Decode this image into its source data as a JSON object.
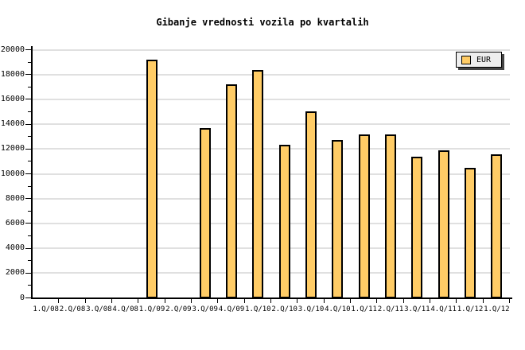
{
  "title": "Gibanje vrednosti vozila po kvartalih",
  "legend": {
    "label": "EUR"
  },
  "colors": {
    "background": "#FFFFFF",
    "bar_fill": "#FFCC66",
    "bar_border": "#000000",
    "grid": "#E0E0E0",
    "axis": "#000000",
    "text": "#000000",
    "legend_bg": "#EEEEEE",
    "legend_shadow": "#444444"
  },
  "chart_data": {
    "type": "bar",
    "title": "Gibanje vrednosti vozila po kvartalih",
    "categories": [
      "1.Q/08",
      "2.Q/08",
      "3.Q/08",
      "4.Q/08",
      "1.Q/09",
      "2.Q/09",
      "3.Q/09",
      "4.Q/09",
      "1.Q/10",
      "2.Q/10",
      "3.Q/10",
      "4.Q/10",
      "1.Q/11",
      "2.Q/11",
      "3.Q/11",
      "4.Q/11",
      "1.Q/12",
      "1.Q/12"
    ],
    "series": [
      {
        "name": "EUR",
        "values": [
          0,
          0,
          0,
          0,
          19200,
          0,
          13700,
          17200,
          18400,
          12350,
          15050,
          12700,
          13200,
          13200,
          11400,
          11900,
          10500,
          11550
        ]
      }
    ],
    "xlabel": "",
    "ylabel": "",
    "ylim": [
      0,
      20000
    ],
    "ytick_step": 2000,
    "yminor_tick_step": 1000,
    "y_tick_labels": [
      "0",
      "2000",
      "4000",
      "6000",
      "8000",
      "10000",
      "12000",
      "14000",
      "16000",
      "18000",
      "20000"
    ],
    "grid": "horizontal-major",
    "legend_position": "top-right",
    "bars_omitted_for_zero": true
  }
}
